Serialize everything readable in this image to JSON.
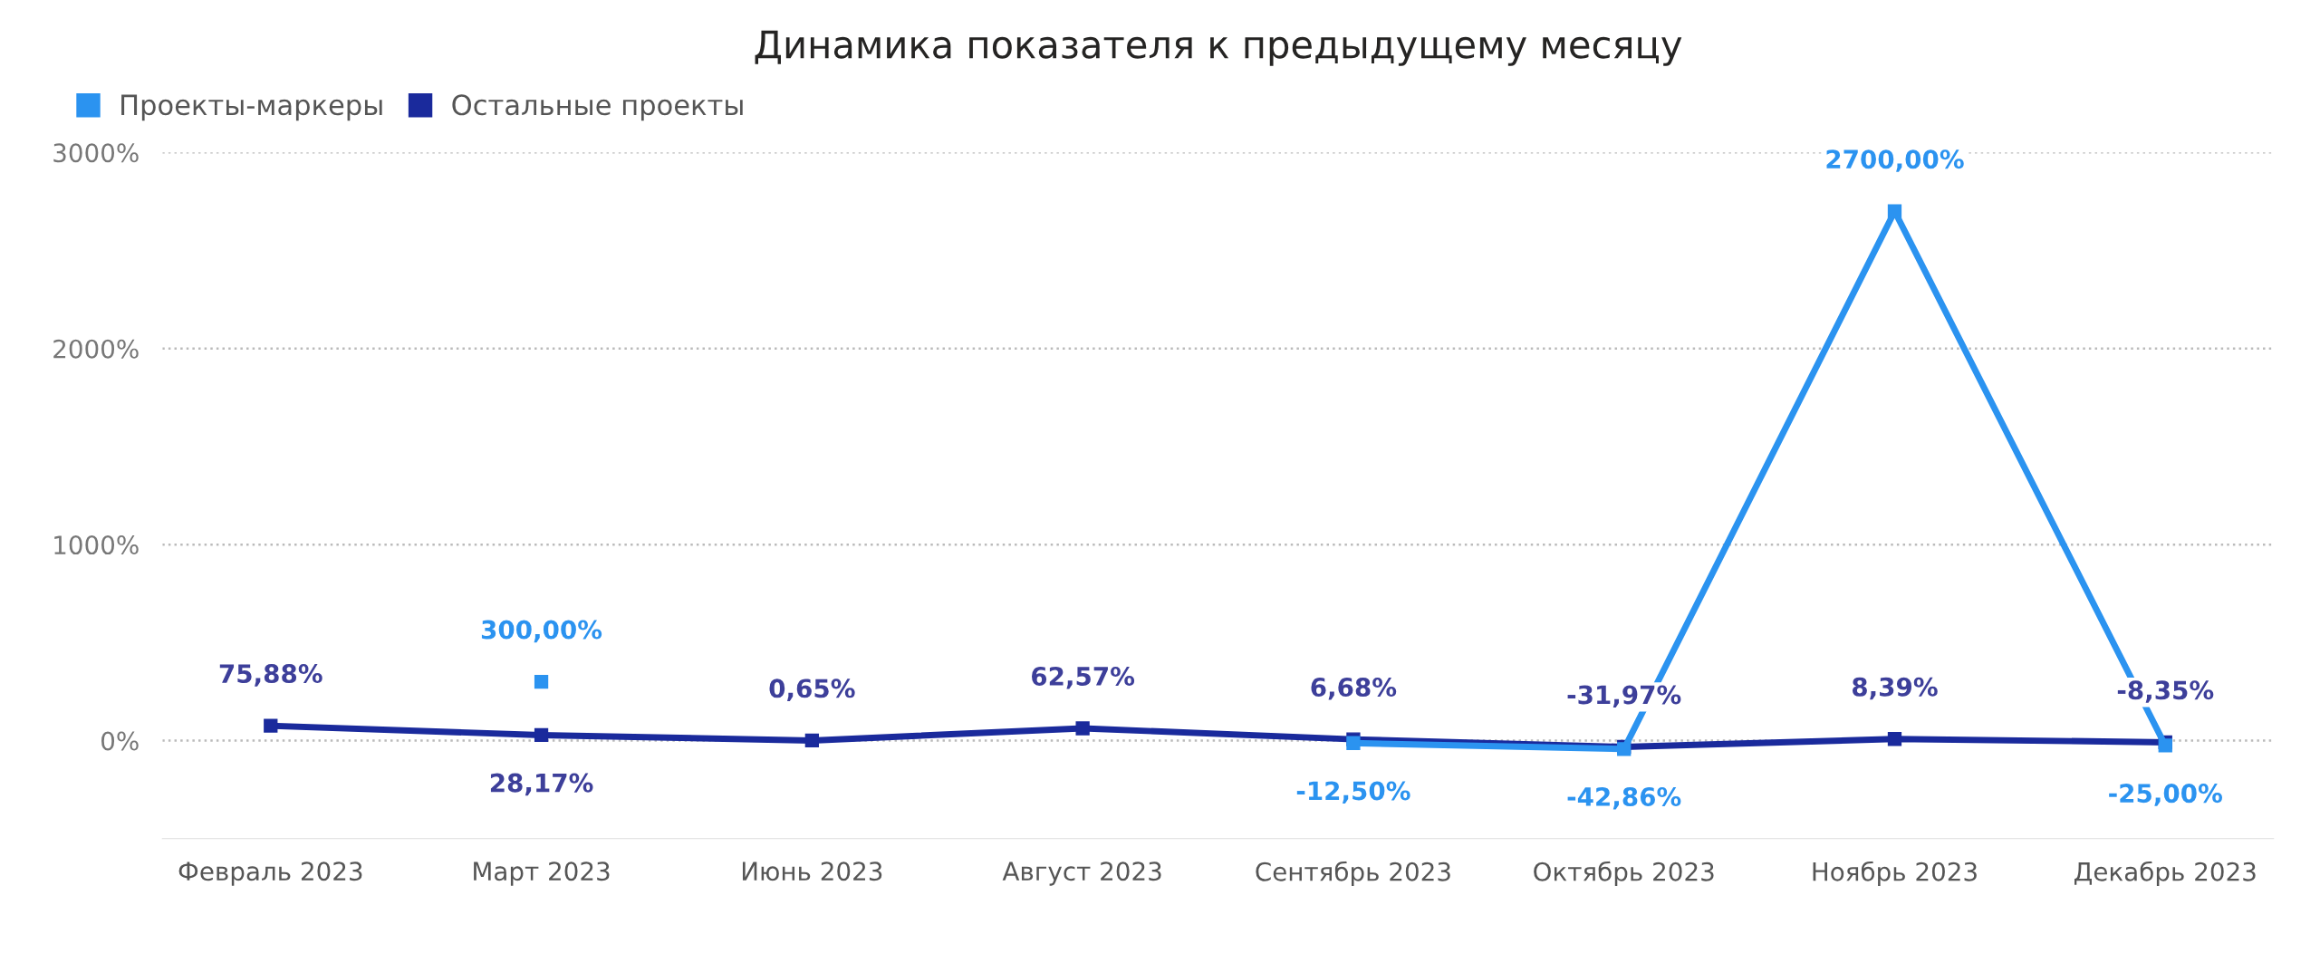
{
  "chart_data": {
    "type": "line",
    "title": "Динамика показателя к предыдущему месяцу",
    "categories": [
      "Февраль 2023",
      "Март 2023",
      "Июнь 2023",
      "Август 2023",
      "Сентябрь 2023",
      "Октябрь 2023",
      "Ноябрь 2023",
      "Декабрь 2023"
    ],
    "series": [
      {
        "name": "Проекты-маркеры",
        "color": "#2b93f0",
        "values": [
          null,
          300.0,
          null,
          null,
          -12.5,
          -42.86,
          2700.0,
          -25.0
        ],
        "value_labels": [
          null,
          "300,00%",
          null,
          null,
          "-12,50%",
          "-42,86%",
          "2700,00%",
          "-25,00%"
        ]
      },
      {
        "name": "Остальные проекты",
        "color": "#1a2a9c",
        "values": [
          75.88,
          28.17,
          0.65,
          62.57,
          6.68,
          -31.97,
          8.39,
          -8.35
        ],
        "value_labels": [
          "75,88%",
          "28,17%",
          "0,65%",
          "62,57%",
          "6,68%",
          "-31,97%",
          "8,39%",
          "-8,35%"
        ]
      }
    ],
    "ylim": [
      -500,
      3000
    ],
    "yticks": [
      {
        "value": 0,
        "label": "0%"
      },
      {
        "value": 1000,
        "label": "1000%"
      },
      {
        "value": 2000,
        "label": "2000%"
      },
      {
        "value": 3000,
        "label": "3000%"
      }
    ],
    "grid": "y",
    "legend": "top left",
    "marker": "square",
    "line_style": "solid"
  }
}
